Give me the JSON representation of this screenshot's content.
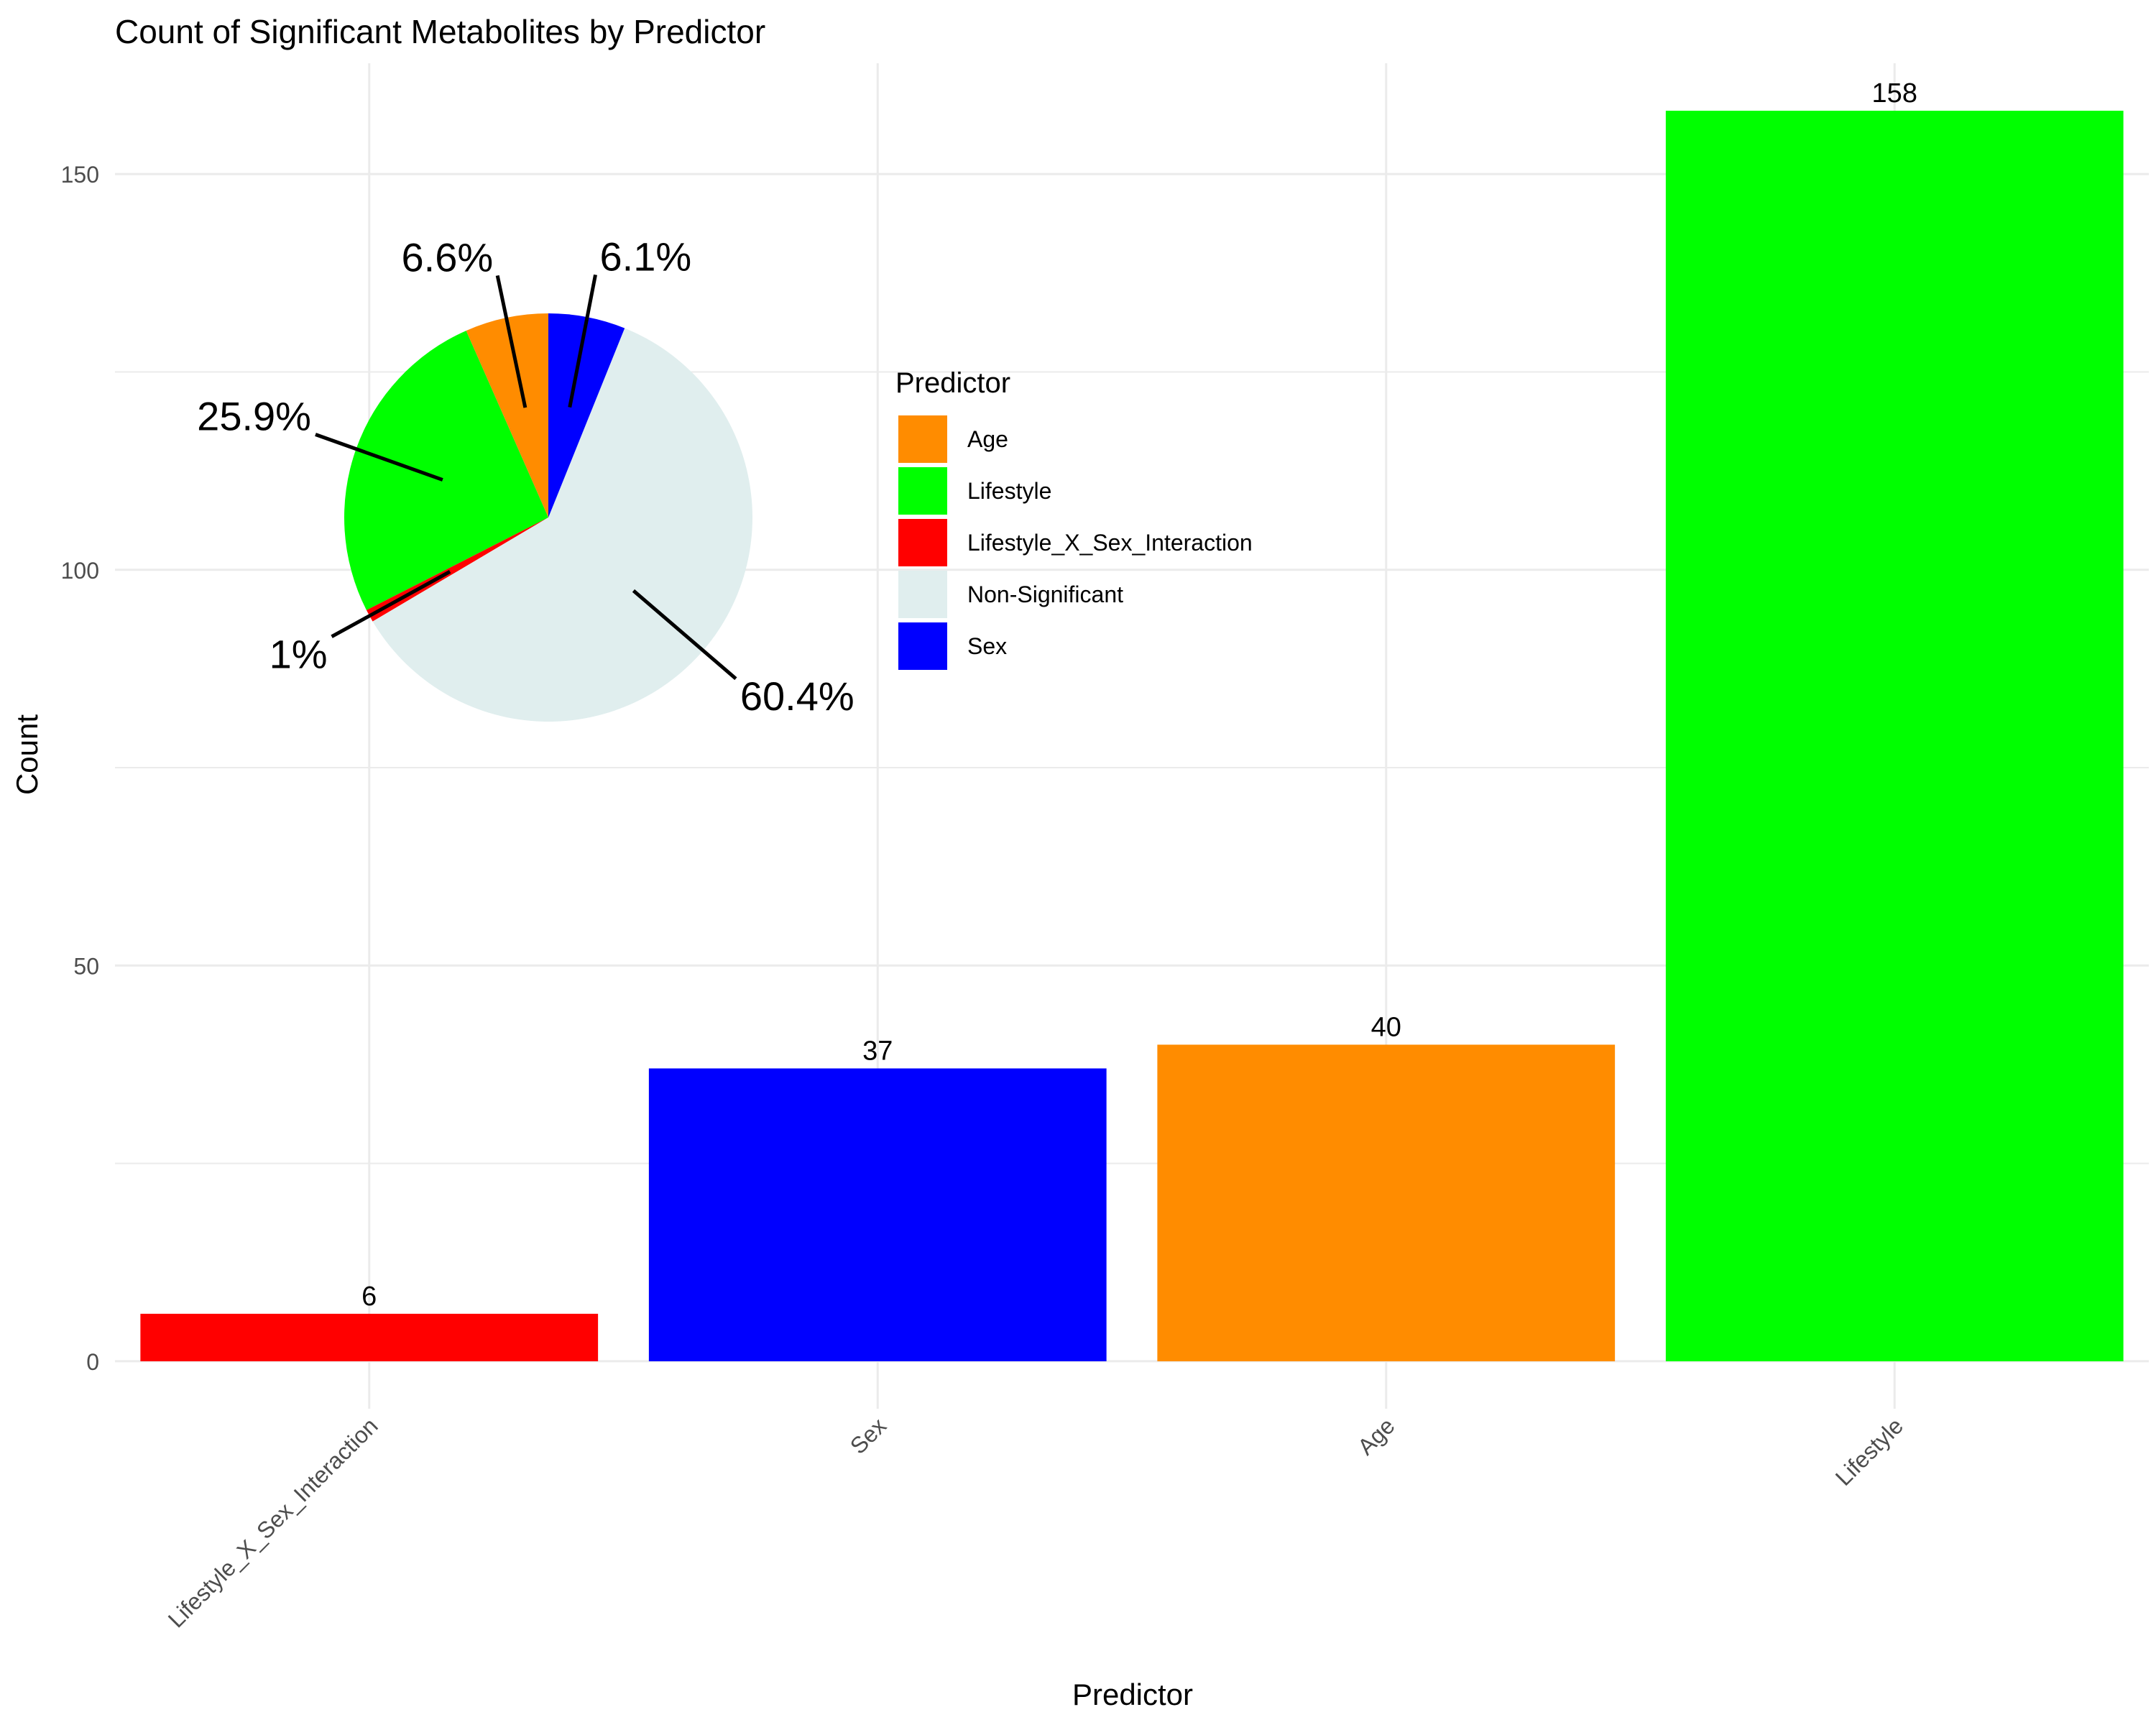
{
  "chart_data": [
    {
      "type": "bar",
      "title": "Count of Significant Metabolites by Predictor",
      "xlabel": "Predictor",
      "ylabel": "Count",
      "ylim": [
        -6,
        164
      ],
      "yticks": [
        0,
        50,
        100,
        150
      ],
      "grid": true,
      "categories": [
        "Lifestyle_X_Sex_Interaction",
        "Sex",
        "Age",
        "Lifestyle"
      ],
      "values": [
        6,
        37,
        40,
        158
      ],
      "value_labels": [
        "6",
        "37",
        "40",
        "158"
      ],
      "colors": [
        "#FF0000",
        "#0000FF",
        "#FF8C00",
        "#00FF00"
      ]
    },
    {
      "type": "pie",
      "legend_title": "Predictor",
      "legend_placement": "right of pie, upper-left of plot",
      "slices": [
        {
          "label": "Age",
          "value": 6.6,
          "pct_label": "6.6%",
          "color": "#FF8C00"
        },
        {
          "label": "Lifestyle",
          "value": 25.9,
          "pct_label": "25.9%",
          "color": "#00FF00"
        },
        {
          "label": "Lifestyle_X_Sex_Interaction",
          "value": 1.0,
          "pct_label": "1%",
          "color": "#FF0000"
        },
        {
          "label": "Non-Significant",
          "value": 60.4,
          "pct_label": "60.4%",
          "color": "#E0EEEE"
        },
        {
          "label": "Sex",
          "value": 6.1,
          "pct_label": "6.1%",
          "color": "#0000FF"
        }
      ]
    }
  ]
}
